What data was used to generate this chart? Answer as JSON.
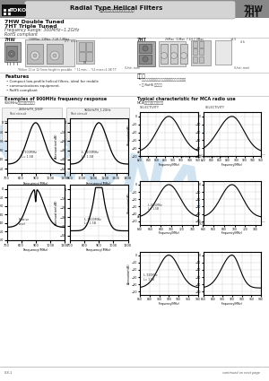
{
  "title_product": "Radial Type Helical Filters",
  "title_japanese": "ラジアルタイプヘリカルフィルタ",
  "type1": "7HW",
  "type2": "7HT",
  "subtitle1": "7HW Double Tuned",
  "subtitle2": "7HT Triple Tuned",
  "freq_range": "Frequency Range: 300MHz~1.2GHz",
  "rohs": "RoHS compliant",
  "features_title": "Features",
  "features": [
    "Compact low-profile helical filters, ideal for mobile",
    "communications equipment.",
    "RoHS compliant"
  ],
  "toku_title": "特　徴",
  "toku_items": [
    "小形状に最適な小型ラディオ用のヘリカルフィルタ",
    "・ RoHS 指令対応"
  ],
  "examples_title": "Examples of 900MHz frequency response",
  "examples_jp": "900MHz帯域周波数特性例",
  "typical_title": "Typical characteristic for MCA radio use",
  "typical_jp": "MCAラジオ用典型特性例",
  "label_7hw": "7HW",
  "label_7ht": "7HT",
  "footer_text": "continued on next page",
  "footer_num": "0-8-1",
  "bg_color": "#ffffff",
  "watermark_color": "#7ab0d4",
  "watermark_alpha": 0.35
}
